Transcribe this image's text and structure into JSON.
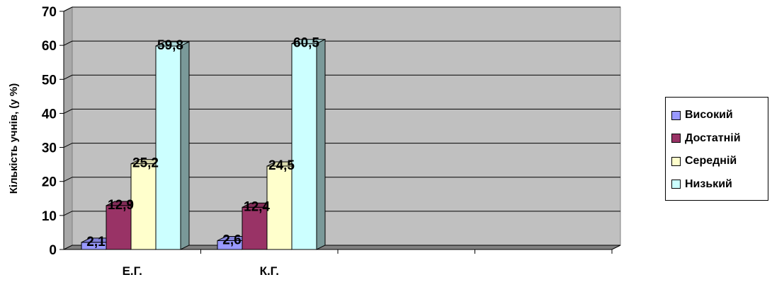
{
  "chart_data": {
    "type": "bar",
    "title": "",
    "ylabel": "Кількість учнів, (у %)",
    "xlabel": "",
    "ylim": [
      0,
      70
    ],
    "yticks": [
      0,
      10,
      20,
      30,
      40,
      50,
      60,
      70
    ],
    "categories": [
      "Е.Г.",
      "К.Г."
    ],
    "grid": true,
    "legend_position": "right",
    "series": [
      {
        "name": "Високий",
        "values": [
          2.1,
          2.6
        ],
        "labels": [
          "2,1",
          "2,6"
        ],
        "color": "#9999ff"
      },
      {
        "name": "Достатній",
        "values": [
          12.9,
          12.4
        ],
        "labels": [
          "12,9",
          "12,4"
        ],
        "color": "#993366"
      },
      {
        "name": "Середній",
        "values": [
          25.2,
          24.5
        ],
        "labels": [
          "25,2",
          "24,5"
        ],
        "color": "#ffffcc"
      },
      {
        "name": "Низький",
        "values": [
          59.8,
          60.5
        ],
        "labels": [
          "59,8",
          "60,5"
        ],
        "color": "#ccffff"
      }
    ],
    "plot_colors": {
      "wall": "#c0c0c0",
      "floor": "#808080",
      "grid": "#000000"
    }
  }
}
